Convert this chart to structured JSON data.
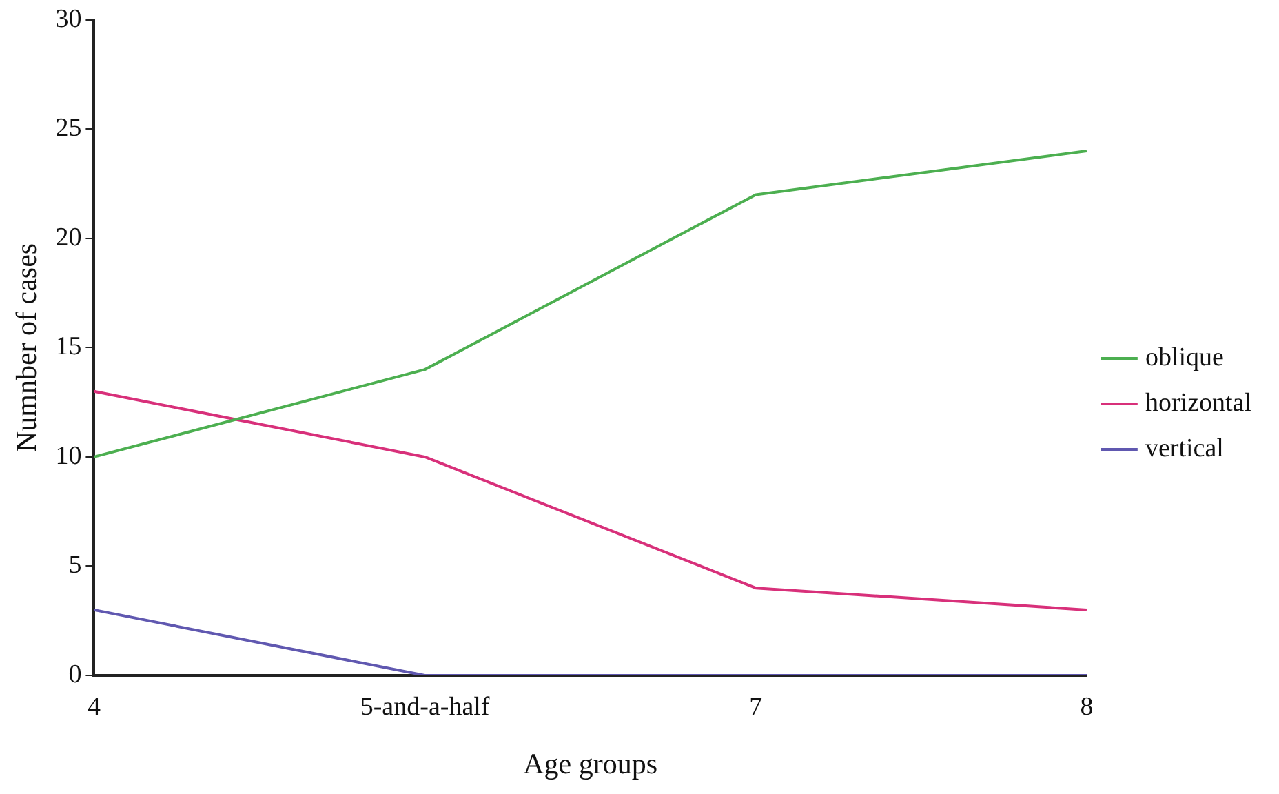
{
  "chart_data": {
    "type": "line",
    "xlabel": "Age groups",
    "ylabel": "Numnber of cases",
    "categories": [
      "4",
      "5-and-a-half",
      "7",
      "8"
    ],
    "series": [
      {
        "name": "oblique",
        "color": "#4caf50",
        "values": [
          10,
          14,
          22,
          24
        ]
      },
      {
        "name": "horizontal",
        "color": "#d8307a",
        "values": [
          13,
          10,
          4,
          3
        ]
      },
      {
        "name": "vertical",
        "color": "#6058b0",
        "values": [
          3,
          0,
          0,
          0
        ]
      }
    ],
    "ylim": [
      0,
      30
    ],
    "yticks": [
      0,
      5,
      10,
      15,
      20,
      25,
      30
    ],
    "grid": false,
    "legend": "right",
    "marker": "none",
    "line_style": "solid"
  }
}
